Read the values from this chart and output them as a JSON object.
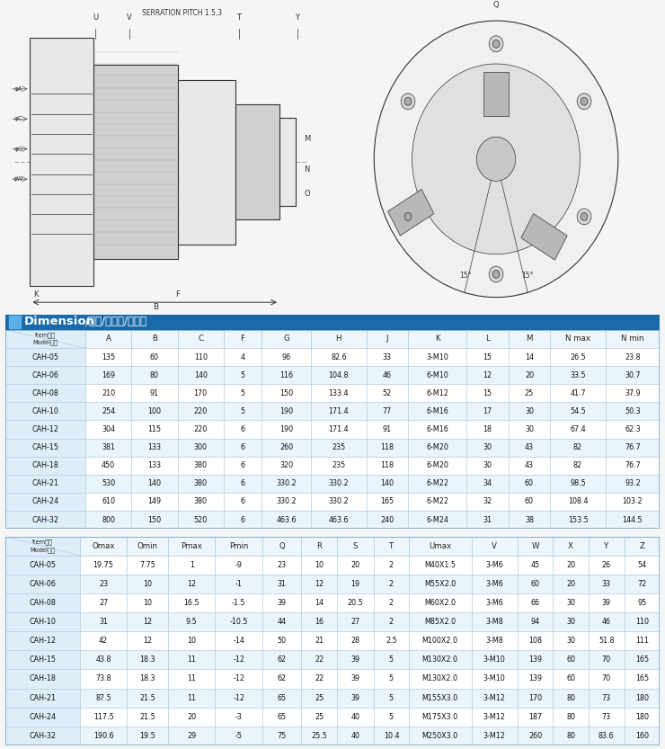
{
  "title_bold": "Dimension",
  "title_rest": "/尺寸/寸法表/치수표",
  "header1": [
    "Item항목\nModel형식",
    "A",
    "B",
    "C",
    "F",
    "G",
    "H",
    "J",
    "K",
    "L",
    "M",
    "N max",
    "N min"
  ],
  "header2": [
    "Item항목\nModel형식",
    "Omax",
    "Omin",
    "Pmax",
    "Pmin",
    "Q",
    "R",
    "S",
    "T",
    "Umax",
    "V",
    "W",
    "X",
    "Y",
    "Z"
  ],
  "table1": [
    [
      "CAH-05",
      "135",
      "60",
      "110",
      "4",
      "96",
      "82.6",
      "33",
      "3-M10",
      "15",
      "14",
      "26.5",
      "23.8"
    ],
    [
      "CAH-06",
      "169",
      "80",
      "140",
      "5",
      "116",
      "104.8",
      "46",
      "6-M10",
      "12",
      "20",
      "33.5",
      "30.7"
    ],
    [
      "CAH-08",
      "210",
      "91",
      "170",
      "5",
      "150",
      "133.4",
      "52",
      "6-M12",
      "15",
      "25",
      "41.7",
      "37.9"
    ],
    [
      "CAH-10",
      "254",
      "100",
      "220",
      "5",
      "190",
      "171.4",
      "77",
      "6-M16",
      "17",
      "30",
      "54.5",
      "50.3"
    ],
    [
      "CAH-12",
      "304",
      "115",
      "220",
      "6",
      "190",
      "171.4",
      "91",
      "6-M16",
      "18",
      "30",
      "67.4",
      "62.3"
    ],
    [
      "CAH-15",
      "381",
      "133",
      "300",
      "6",
      "260",
      "235",
      "118",
      "6-M20",
      "30",
      "43",
      "82",
      "76.7"
    ],
    [
      "CAH-18",
      "450",
      "133",
      "380",
      "6",
      "320",
      "235",
      "118",
      "6-M20",
      "30",
      "43",
      "82",
      "76.7"
    ],
    [
      "CAH-21",
      "530",
      "140",
      "380",
      "6",
      "330.2",
      "330.2",
      "140",
      "6-M22",
      "34",
      "60",
      "98.5",
      "93.2"
    ],
    [
      "CAH-24",
      "610",
      "149",
      "380",
      "6",
      "330.2",
      "330.2",
      "165",
      "6-M22",
      "32",
      "60",
      "108.4",
      "103.2"
    ],
    [
      "CAH-32",
      "800",
      "150",
      "520",
      "6",
      "463.6",
      "463.6",
      "240",
      "6-M24",
      "31",
      "38",
      "153.5",
      "144.5"
    ]
  ],
  "table2": [
    [
      "CAH-05",
      "19.75",
      "7.75",
      "1",
      "-9",
      "23",
      "10",
      "20",
      "2",
      "M40X1.5",
      "3-M6",
      "45",
      "20",
      "26",
      "54"
    ],
    [
      "CAH-06",
      "23",
      "10",
      "12",
      "-1",
      "31",
      "12",
      "19",
      "2",
      "M55X2.0",
      "3-M6",
      "60",
      "20",
      "33",
      "72"
    ],
    [
      "CAH-08",
      "27",
      "10",
      "16.5",
      "-1.5",
      "39",
      "14",
      "20.5",
      "2",
      "M60X2.0",
      "3-M6",
      "66",
      "30",
      "39",
      "95"
    ],
    [
      "CAH-10",
      "31",
      "12",
      "9.5",
      "-10.5",
      "44",
      "16",
      "27",
      "2",
      "M85X2.0",
      "3-M8",
      "94",
      "30",
      "46",
      "110"
    ],
    [
      "CAH-12",
      "42",
      "12",
      "10",
      "-14",
      "50",
      "21",
      "28",
      "2.5",
      "M100X2.0",
      "3-M8",
      "108",
      "30",
      "51.8",
      "111"
    ],
    [
      "CAH-15",
      "43.8",
      "18.3",
      "11",
      "-12",
      "62",
      "22",
      "39",
      "5",
      "M130X2.0",
      "3-M10",
      "139",
      "60",
      "70",
      "165"
    ],
    [
      "CAH-18",
      "73.8",
      "18.3",
      "11",
      "-12",
      "62",
      "22",
      "39",
      "5",
      "M130X2.0",
      "3-M10",
      "139",
      "60",
      "70",
      "165"
    ],
    [
      "CAH-21",
      "87.5",
      "21.5",
      "11",
      "-12",
      "65",
      "25",
      "39",
      "5",
      "M155X3.0",
      "3-M12",
      "170",
      "80",
      "73",
      "180"
    ],
    [
      "CAH-24",
      "117.5",
      "21.5",
      "20",
      "-3",
      "65",
      "25",
      "40",
      "5",
      "M175X3.0",
      "3-M12",
      "187",
      "80",
      "73",
      "180"
    ],
    [
      "CAH-32",
      "190.6",
      "19.5",
      "29",
      "-5",
      "75",
      "25.5",
      "40",
      "10.4",
      "M250X3.0",
      "3-M12",
      "260",
      "80",
      "83.6",
      "160"
    ]
  ],
  "header_col0_bg": "#ddeef8",
  "header_other_bg": "#eef6fb",
  "row_even_bg": "#ffffff",
  "row_odd_bg": "#eaf4fb",
  "col0_bg": "#ddeef8",
  "border_color": "#b0cce0",
  "text_color": "#111111",
  "header_text_color": "#222222",
  "title_bg": "#1a6aaa",
  "title_text_color": "#ffffff",
  "serration_text": "SERRATION PITCH 1.5,3"
}
